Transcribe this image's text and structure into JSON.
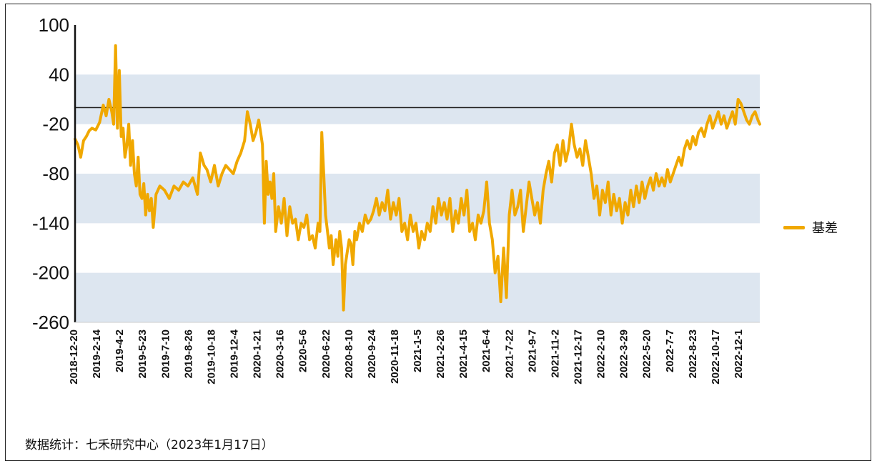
{
  "chart_data": {
    "type": "line",
    "title": "",
    "ylim": [
      -260,
      100
    ],
    "yticks": [
      100,
      40,
      -20,
      -80,
      -140,
      -200,
      -260
    ],
    "bands": [
      [
        -20,
        40
      ],
      [
        -140,
        -80
      ],
      [
        -260,
        -200
      ]
    ],
    "reference_line": 0,
    "grid": false,
    "legend_position": "right",
    "x_tick_labels": [
      "2018-12-20",
      "2019-2-14",
      "2019-4-2",
      "2019-5-23",
      "2019-7-10",
      "2019-8-26",
      "2019-10-18",
      "2019-12-4",
      "2020-1-21",
      "2020-3-16",
      "2020-5-6",
      "2020-6-22",
      "2020-8-10",
      "2020-9-24",
      "2020-11-18",
      "2021-1-5",
      "2021-2-26",
      "2021-4-15",
      "2021-6-4",
      "2021-7-22",
      "2021-9-7",
      "2021-11-2",
      "2021-12-17",
      "2022-2-10",
      "2022-3-29",
      "2022-5-20",
      "2022-7-7",
      "2022-8-23",
      "2022-10-17",
      "2022-12-1"
    ],
    "series": [
      {
        "name": "基差",
        "color": "#f0a800",
        "points": [
          [
            0,
            -38
          ],
          [
            0.3,
            -45
          ],
          [
            0.6,
            -60
          ],
          [
            0.9,
            -40
          ],
          [
            1.2,
            -35
          ],
          [
            1.5,
            -28
          ],
          [
            1.8,
            -25
          ],
          [
            2.2,
            -27
          ],
          [
            2.6,
            -18
          ],
          [
            3.0,
            3
          ],
          [
            3.3,
            -10
          ],
          [
            3.6,
            10
          ],
          [
            3.9,
            -5
          ],
          [
            4.1,
            -20
          ],
          [
            4.3,
            75
          ],
          [
            4.5,
            -25
          ],
          [
            4.7,
            45
          ],
          [
            4.9,
            -35
          ],
          [
            5.1,
            -25
          ],
          [
            5.3,
            -60
          ],
          [
            5.5,
            -45
          ],
          [
            5.7,
            -20
          ],
          [
            5.9,
            -70
          ],
          [
            6.1,
            -40
          ],
          [
            6.3,
            -80
          ],
          [
            6.5,
            -95
          ],
          [
            6.7,
            -60
          ],
          [
            6.9,
            -105
          ],
          [
            7.1,
            -110
          ],
          [
            7.3,
            -92
          ],
          [
            7.5,
            -130
          ],
          [
            7.7,
            -105
          ],
          [
            7.9,
            -125
          ],
          [
            8.1,
            -110
          ],
          [
            8.3,
            -145
          ],
          [
            8.6,
            -105
          ],
          [
            9.0,
            -95
          ],
          [
            9.5,
            -100
          ],
          [
            10.0,
            -110
          ],
          [
            10.5,
            -95
          ],
          [
            11.0,
            -100
          ],
          [
            11.5,
            -90
          ],
          [
            12.0,
            -95
          ],
          [
            12.5,
            -85
          ],
          [
            13.0,
            -105
          ],
          [
            13.3,
            -55
          ],
          [
            13.7,
            -70
          ],
          [
            14.0,
            -75
          ],
          [
            14.4,
            -90
          ],
          [
            14.8,
            -70
          ],
          [
            15.2,
            -95
          ],
          [
            15.6,
            -80
          ],
          [
            16.0,
            -70
          ],
          [
            16.4,
            -75
          ],
          [
            16.8,
            -80
          ],
          [
            17.2,
            -65
          ],
          [
            17.6,
            -55
          ],
          [
            18.0,
            -40
          ],
          [
            18.3,
            -5
          ],
          [
            18.6,
            -20
          ],
          [
            18.9,
            -40
          ],
          [
            19.2,
            -30
          ],
          [
            19.5,
            -15
          ],
          [
            19.7,
            -30
          ],
          [
            19.9,
            -45
          ],
          [
            20.1,
            -140
          ],
          [
            20.3,
            -65
          ],
          [
            20.5,
            -105
          ],
          [
            20.7,
            -90
          ],
          [
            20.9,
            -110
          ],
          [
            21.1,
            -80
          ],
          [
            21.3,
            -150
          ],
          [
            21.6,
            -120
          ],
          [
            21.9,
            -140
          ],
          [
            22.2,
            -110
          ],
          [
            22.5,
            -155
          ],
          [
            22.8,
            -120
          ],
          [
            23.1,
            -140
          ],
          [
            23.4,
            -135
          ],
          [
            23.7,
            -160
          ],
          [
            24.0,
            -140
          ],
          [
            24.3,
            -145
          ],
          [
            24.6,
            -130
          ],
          [
            24.9,
            -160
          ],
          [
            25.2,
            -155
          ],
          [
            25.5,
            -170
          ],
          [
            25.8,
            -140
          ],
          [
            26.0,
            -150
          ],
          [
            26.2,
            -30
          ],
          [
            26.4,
            -80
          ],
          [
            26.6,
            -130
          ],
          [
            26.8,
            -150
          ],
          [
            27.0,
            -170
          ],
          [
            27.2,
            -155
          ],
          [
            27.4,
            -190
          ],
          [
            27.7,
            -160
          ],
          [
            27.9,
            -180
          ],
          [
            28.1,
            -150
          ],
          [
            28.3,
            -170
          ],
          [
            28.5,
            -245
          ],
          [
            28.7,
            -190
          ],
          [
            28.9,
            -175
          ],
          [
            29.1,
            -160
          ],
          [
            29.3,
            -165
          ],
          [
            29.5,
            -190
          ],
          [
            29.7,
            -150
          ],
          [
            29.9,
            -160
          ],
          [
            30.2,
            -140
          ],
          [
            30.5,
            -150
          ],
          [
            30.8,
            -130
          ],
          [
            31.1,
            -140
          ],
          [
            31.4,
            -135
          ],
          [
            31.7,
            -125
          ],
          [
            32.0,
            -110
          ],
          [
            32.3,
            -130
          ],
          [
            32.6,
            -115
          ],
          [
            32.9,
            -125
          ],
          [
            33.2,
            -100
          ],
          [
            33.5,
            -135
          ],
          [
            33.8,
            -115
          ],
          [
            34.1,
            -130
          ],
          [
            34.4,
            -110
          ],
          [
            34.7,
            -150
          ],
          [
            35.0,
            -140
          ],
          [
            35.3,
            -160
          ],
          [
            35.6,
            -130
          ],
          [
            35.9,
            -150
          ],
          [
            36.2,
            -140
          ],
          [
            36.5,
            -170
          ],
          [
            36.8,
            -150
          ],
          [
            37.1,
            -160
          ],
          [
            37.4,
            -140
          ],
          [
            37.7,
            -150
          ],
          [
            38.0,
            -120
          ],
          [
            38.3,
            -140
          ],
          [
            38.6,
            -110
          ],
          [
            38.9,
            -130
          ],
          [
            39.2,
            -115
          ],
          [
            39.5,
            -135
          ],
          [
            39.8,
            -110
          ],
          [
            40.1,
            -150
          ],
          [
            40.4,
            -125
          ],
          [
            40.7,
            -140
          ],
          [
            41.0,
            -110
          ],
          [
            41.3,
            -130
          ],
          [
            41.6,
            -100
          ],
          [
            41.9,
            -150
          ],
          [
            42.2,
            -140
          ],
          [
            42.5,
            -160
          ],
          [
            42.8,
            -130
          ],
          [
            43.1,
            -140
          ],
          [
            43.4,
            -125
          ],
          [
            43.7,
            -90
          ],
          [
            44.0,
            -140
          ],
          [
            44.3,
            -160
          ],
          [
            44.6,
            -200
          ],
          [
            44.9,
            -180
          ],
          [
            45.2,
            -235
          ],
          [
            45.5,
            -170
          ],
          [
            45.8,
            -230
          ],
          [
            46.1,
            -130
          ],
          [
            46.4,
            -100
          ],
          [
            46.7,
            -130
          ],
          [
            47.0,
            -120
          ],
          [
            47.3,
            -100
          ],
          [
            47.6,
            -150
          ],
          [
            47.9,
            -120
          ],
          [
            48.2,
            -90
          ],
          [
            48.5,
            -110
          ],
          [
            48.8,
            -130
          ],
          [
            49.1,
            -115
          ],
          [
            49.4,
            -140
          ],
          [
            49.7,
            -100
          ],
          [
            50.0,
            -80
          ],
          [
            50.3,
            -65
          ],
          [
            50.6,
            -90
          ],
          [
            50.9,
            -55
          ],
          [
            51.2,
            -45
          ],
          [
            51.5,
            -70
          ],
          [
            51.8,
            -40
          ],
          [
            52.1,
            -65
          ],
          [
            52.4,
            -50
          ],
          [
            52.7,
            -20
          ],
          [
            53.0,
            -45
          ],
          [
            53.3,
            -60
          ],
          [
            53.6,
            -50
          ],
          [
            53.9,
            -70
          ],
          [
            54.2,
            -40
          ],
          [
            54.5,
            -60
          ],
          [
            54.8,
            -80
          ],
          [
            55.1,
            -110
          ],
          [
            55.4,
            -95
          ],
          [
            55.7,
            -130
          ],
          [
            56.0,
            -100
          ],
          [
            56.3,
            -115
          ],
          [
            56.6,
            -90
          ],
          [
            56.9,
            -130
          ],
          [
            57.2,
            -105
          ],
          [
            57.5,
            -125
          ],
          [
            57.8,
            -110
          ],
          [
            58.1,
            -140
          ],
          [
            58.4,
            -115
          ],
          [
            58.7,
            -130
          ],
          [
            59.0,
            -100
          ],
          [
            59.3,
            -120
          ],
          [
            59.6,
            -95
          ],
          [
            59.9,
            -115
          ],
          [
            60.2,
            -90
          ],
          [
            60.5,
            -110
          ],
          [
            60.8,
            -95
          ],
          [
            61.1,
            -85
          ],
          [
            61.4,
            -100
          ],
          [
            61.7,
            -80
          ],
          [
            62.0,
            -95
          ],
          [
            62.3,
            -85
          ],
          [
            62.6,
            -95
          ],
          [
            62.9,
            -75
          ],
          [
            63.2,
            -90
          ],
          [
            63.5,
            -80
          ],
          [
            63.8,
            -70
          ],
          [
            64.1,
            -60
          ],
          [
            64.4,
            -70
          ],
          [
            64.7,
            -50
          ],
          [
            65.0,
            -40
          ],
          [
            65.3,
            -50
          ],
          [
            65.6,
            -35
          ],
          [
            65.9,
            -45
          ],
          [
            66.2,
            -30
          ],
          [
            66.5,
            -25
          ],
          [
            66.8,
            -35
          ],
          [
            67.1,
            -20
          ],
          [
            67.4,
            -10
          ],
          [
            67.7,
            -25
          ],
          [
            68.0,
            -15
          ],
          [
            68.3,
            -5
          ],
          [
            68.6,
            -20
          ],
          [
            68.9,
            -10
          ],
          [
            69.2,
            -25
          ],
          [
            69.5,
            -15
          ],
          [
            69.8,
            -5
          ],
          [
            70.1,
            -20
          ],
          [
            70.4,
            10
          ],
          [
            70.7,
            5
          ],
          [
            71.0,
            -5
          ],
          [
            71.3,
            -15
          ],
          [
            71.6,
            -20
          ],
          [
            71.9,
            -10
          ],
          [
            72.2,
            -5
          ],
          [
            72.5,
            -15
          ],
          [
            72.7,
            -20
          ]
        ]
      }
    ]
  },
  "legend": {
    "label": "基差"
  },
  "source_note": "数据统计：七禾研究中心（2023年1月17日）"
}
